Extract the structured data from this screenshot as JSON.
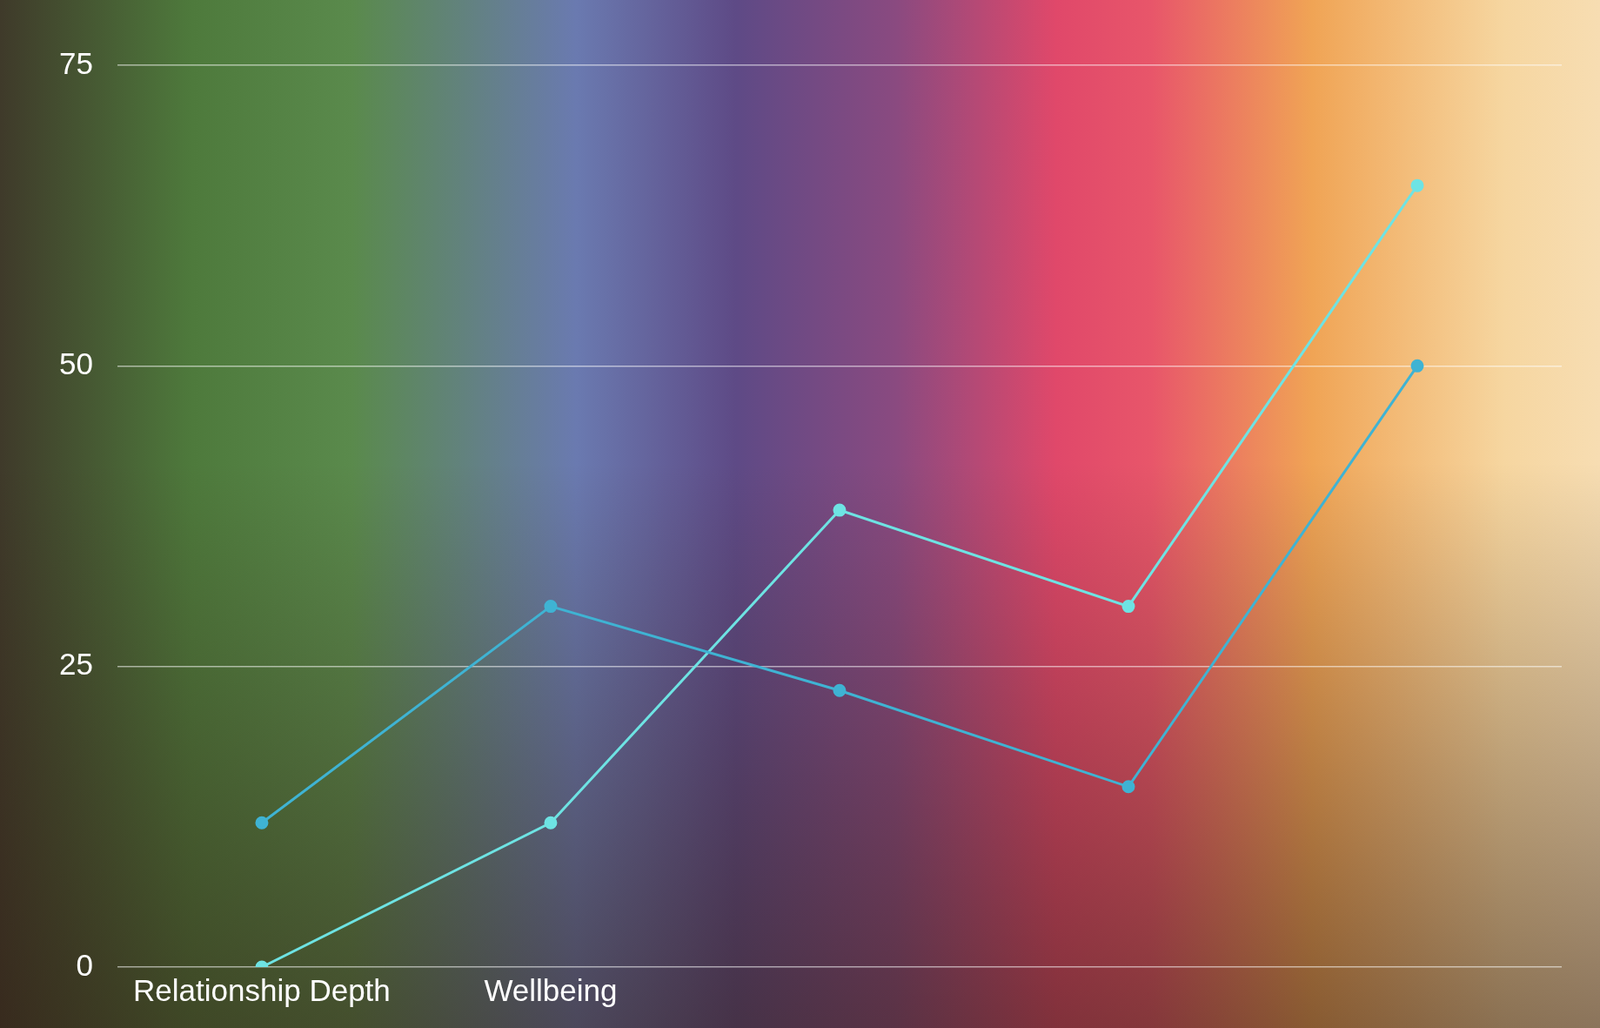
{
  "chart_data": {
    "type": "line",
    "categories": [
      "Relationship Depth",
      "Wellbeing",
      null,
      null,
      null
    ],
    "series": [
      {
        "color": "#3fb3d3",
        "marker": "circle",
        "values": [
          12,
          30,
          23,
          15,
          50
        ]
      },
      {
        "color": "#6ee3e3",
        "marker": "circle",
        "values": [
          0,
          12,
          38,
          30,
          65
        ]
      }
    ],
    "ylim": [
      0,
      75
    ],
    "yticks": [
      0,
      25,
      50,
      75
    ],
    "grid": true
  }
}
